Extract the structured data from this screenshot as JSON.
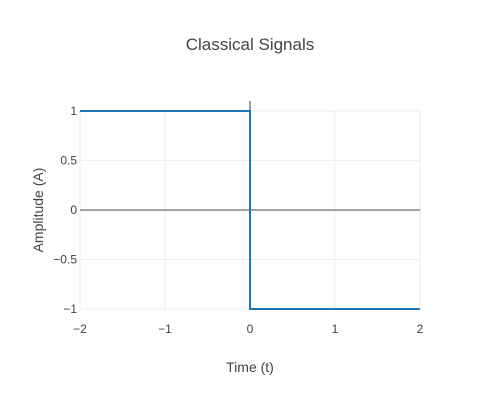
{
  "chart_data": {
    "type": "line",
    "title": "Classical Signals",
    "xlabel": "Time (t)",
    "ylabel": "Amplitude (A)",
    "xlim": [
      -2,
      2
    ],
    "ylim": [
      -1,
      1
    ],
    "grid": true,
    "x_ticks": [
      -2,
      -1,
      0,
      1,
      2
    ],
    "x_tick_labels": [
      "−2",
      "−1",
      "0",
      "1",
      "2"
    ],
    "y_ticks": [
      1,
      0.5,
      0,
      -0.5,
      -1
    ],
    "y_tick_labels": [
      "1",
      "0.5",
      "0",
      "−0.5",
      "−1"
    ],
    "series": [
      {
        "x": [
          -2,
          0,
          0,
          2
        ],
        "y": [
          1,
          1,
          -1,
          -1
        ],
        "color": "#1f77b4"
      }
    ],
    "zero_line_color": "#444444",
    "grid_color": "#eeeeee"
  }
}
